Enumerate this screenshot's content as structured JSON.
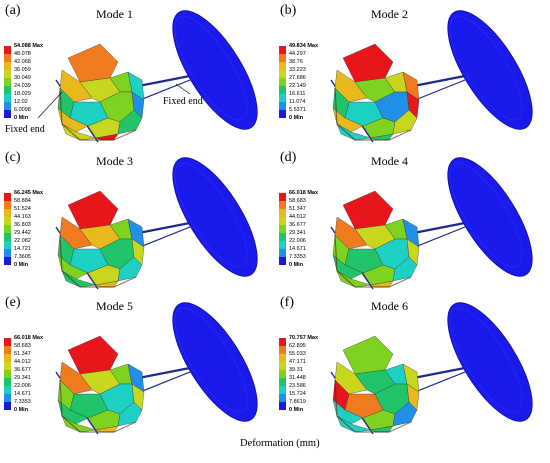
{
  "panels": [
    {
      "letter": "(a)",
      "mode": "Mode 1",
      "max_label": "54.088 Max",
      "min_label": "0 Min",
      "ticks": [
        "48.078",
        "42.068",
        "36.059",
        "30.049",
        "24.039",
        "18.029",
        "12.02",
        "6.0098"
      ]
    },
    {
      "letter": "(b)",
      "mode": "Mode 2",
      "max_label": "49.834 Max",
      "min_label": "0 Min",
      "ticks": [
        "44.297",
        "38.76",
        "33.223",
        "27.686",
        "22.149",
        "16.611",
        "11.074",
        "5.5371"
      ]
    },
    {
      "letter": "(c)",
      "mode": "Mode 3",
      "max_label": "66.245 Max",
      "min_label": "0 Min",
      "ticks": [
        "58.884",
        "51.524",
        "44.163",
        "36.803",
        "29.442",
        "22.082",
        "14.721",
        "7.3605"
      ]
    },
    {
      "letter": "(d)",
      "mode": "Mode 4",
      "max_label": "66.018 Max",
      "min_label": "0 Min",
      "ticks": [
        "58.683",
        "51.347",
        "44.012",
        "36.677",
        "29.341",
        "22.006",
        "14.671",
        "7.3353"
      ]
    },
    {
      "letter": "(e)",
      "mode": "Mode 5",
      "max_label": "66.018 Max",
      "min_label": "0 Min",
      "ticks": [
        "58.683",
        "51.347",
        "44.012",
        "36.677",
        "29.341",
        "22.006",
        "14.671",
        "7.3353"
      ]
    },
    {
      "letter": "(f)",
      "mode": "Mode 6",
      "max_label": "70.757 Max",
      "min_label": "0 Min",
      "ticks": [
        "62.895",
        "55.033",
        "47.171",
        "39.31",
        "31.448",
        "23.586",
        "15.724",
        "7.8619"
      ]
    }
  ],
  "annotations": {
    "fixed_end_left": "Fixed end",
    "fixed_end_right": "Fixed end"
  },
  "footer": {
    "label": "Deformation (mm)"
  },
  "colors": {
    "scale": [
      "#e8161b",
      "#f07a1e",
      "#e9b81c",
      "#c8d71e",
      "#7ed321",
      "#22c46a",
      "#1dd0c4",
      "#1f8fe8",
      "#1a1ad8"
    ],
    "disk": "#1a1aec",
    "rod": "#1c2a8c"
  }
}
